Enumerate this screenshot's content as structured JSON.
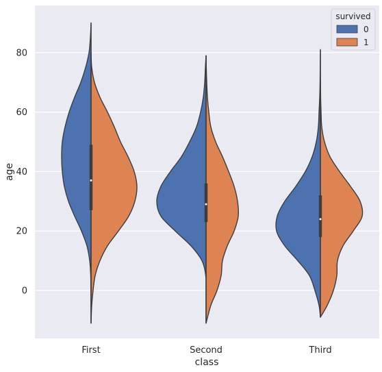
{
  "chart_data": {
    "type": "violin",
    "split": true,
    "categories": [
      "First",
      "Second",
      "Third"
    ],
    "xlabel": "class",
    "ylabel": "age",
    "ylim": [
      -17,
      93
    ],
    "yticks": [
      0,
      20,
      40,
      60,
      80
    ],
    "grid": true,
    "legend": {
      "title": "survived",
      "placement": "top-right"
    },
    "series": [
      {
        "name": "0",
        "color": "#4c72b0",
        "side": "left"
      },
      {
        "name": "1",
        "color": "#dd8452",
        "side": "right"
      }
    ],
    "violins": [
      {
        "category": "First",
        "left": [
          [
            -11,
            0
          ],
          [
            -5,
            0.1
          ],
          [
            0,
            0.3
          ],
          [
            5,
            0.5
          ],
          [
            10,
            2
          ],
          [
            15,
            6
          ],
          [
            20,
            14
          ],
          [
            25,
            24
          ],
          [
            30,
            33
          ],
          [
            35,
            39
          ],
          [
            40,
            42
          ],
          [
            45,
            43
          ],
          [
            50,
            42
          ],
          [
            55,
            38
          ],
          [
            60,
            32
          ],
          [
            65,
            24
          ],
          [
            70,
            15
          ],
          [
            75,
            8
          ],
          [
            80,
            3
          ],
          [
            85,
            1
          ],
          [
            90,
            0
          ]
        ],
        "right": [
          [
            -11,
            0
          ],
          [
            -5,
            1
          ],
          [
            0,
            3
          ],
          [
            5,
            6
          ],
          [
            10,
            13
          ],
          [
            15,
            24
          ],
          [
            20,
            40
          ],
          [
            25,
            55
          ],
          [
            30,
            64
          ],
          [
            35,
            67
          ],
          [
            40,
            63
          ],
          [
            45,
            54
          ],
          [
            50,
            43
          ],
          [
            55,
            34
          ],
          [
            60,
            24
          ],
          [
            65,
            13
          ],
          [
            70,
            5
          ],
          [
            75,
            1
          ],
          [
            80,
            0
          ]
        ],
        "box": [
          27,
          49
        ],
        "whisker": [
          -11,
          90
        ],
        "median": 37
      },
      {
        "category": "Second",
        "left": [
          [
            -11,
            0
          ],
          [
            0,
            0
          ],
          [
            5,
            0.5
          ],
          [
            10,
            6
          ],
          [
            15,
            22
          ],
          [
            20,
            45
          ],
          [
            25,
            66
          ],
          [
            30,
            72
          ],
          [
            35,
            66
          ],
          [
            40,
            52
          ],
          [
            45,
            36
          ],
          [
            50,
            24
          ],
          [
            55,
            14
          ],
          [
            60,
            8
          ],
          [
            65,
            4
          ],
          [
            70,
            2
          ],
          [
            75,
            1
          ],
          [
            79,
            0
          ]
        ],
        "right": [
          [
            -11,
            0
          ],
          [
            -5,
            7
          ],
          [
            0,
            16
          ],
          [
            5,
            22
          ],
          [
            10,
            24
          ],
          [
            15,
            31
          ],
          [
            20,
            41
          ],
          [
            25,
            47
          ],
          [
            30,
            46
          ],
          [
            35,
            41
          ],
          [
            40,
            33
          ],
          [
            45,
            24
          ],
          [
            50,
            14
          ],
          [
            55,
            7
          ],
          [
            60,
            4
          ],
          [
            65,
            2
          ],
          [
            70,
            1
          ],
          [
            75,
            0.3
          ],
          [
            79,
            0
          ]
        ],
        "box": [
          23,
          36
        ],
        "whisker": [
          -11,
          79
        ],
        "median": 29
      },
      {
        "category": "Third",
        "left": [
          [
            -9,
            0
          ],
          [
            -5,
            2
          ],
          [
            0,
            8
          ],
          [
            5,
            16
          ],
          [
            10,
            33
          ],
          [
            15,
            52
          ],
          [
            20,
            64
          ],
          [
            25,
            63
          ],
          [
            30,
            52
          ],
          [
            35,
            36
          ],
          [
            40,
            22
          ],
          [
            45,
            12
          ],
          [
            50,
            6
          ],
          [
            55,
            3
          ],
          [
            60,
            2
          ],
          [
            65,
            1
          ],
          [
            70,
            0.5
          ],
          [
            75,
            0.3
          ],
          [
            81,
            0
          ]
        ],
        "right": [
          [
            -9,
            0
          ],
          [
            -5,
            10
          ],
          [
            0,
            19
          ],
          [
            5,
            24
          ],
          [
            10,
            25
          ],
          [
            15,
            33
          ],
          [
            20,
            48
          ],
          [
            25,
            61
          ],
          [
            30,
            58
          ],
          [
            35,
            44
          ],
          [
            40,
            28
          ],
          [
            45,
            14
          ],
          [
            50,
            6
          ],
          [
            55,
            2
          ],
          [
            60,
            1
          ],
          [
            65,
            0.4
          ],
          [
            72,
            0
          ]
        ],
        "box": [
          18,
          32
        ],
        "whisker": [
          -9,
          81
        ],
        "median": 24
      }
    ]
  }
}
